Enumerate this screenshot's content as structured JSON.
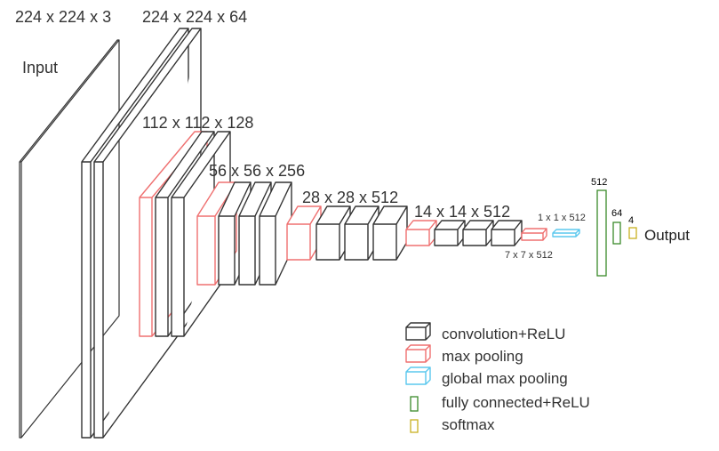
{
  "labels": {
    "input": "Input",
    "output": "Output",
    "dim_input": "224 x 224 x 3",
    "dim_conv1": "224 x 224 x 64",
    "dim_conv2": "112 x 112 x 128",
    "dim_conv3": "56 x 56 x 256",
    "dim_conv4": "28 x 28 x 512",
    "dim_conv5": "14 x 14 x 512",
    "dim_pool5": "7 x 7 x 512",
    "dim_gap": "1 x 1 x 512",
    "fc1": "512",
    "fc2": "64",
    "fc3": "4"
  },
  "legend": {
    "conv": "convolution+ReLU",
    "maxpool": "max pooling",
    "gmp": "global max pooling",
    "fc": "fully connected+ReLU",
    "softmax": "softmax"
  },
  "colors": {
    "conv": "#333333",
    "maxpool": "#ef7070",
    "gmp": "#5bc8ee",
    "fc": "#3a8a2a",
    "softmax": "#c8b020"
  }
}
